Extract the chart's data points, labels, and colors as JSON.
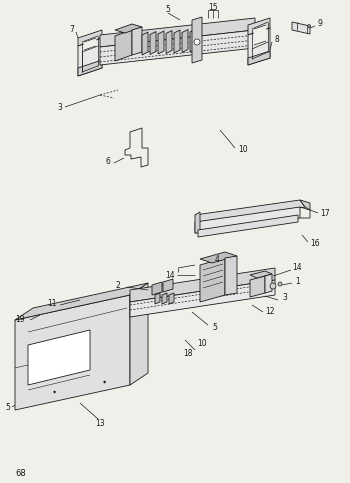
{
  "bg_color": "#f0f0eb",
  "lc": "#1a1a1a",
  "page_num": "68",
  "figsize": [
    3.5,
    4.83
  ],
  "dpi": 100
}
